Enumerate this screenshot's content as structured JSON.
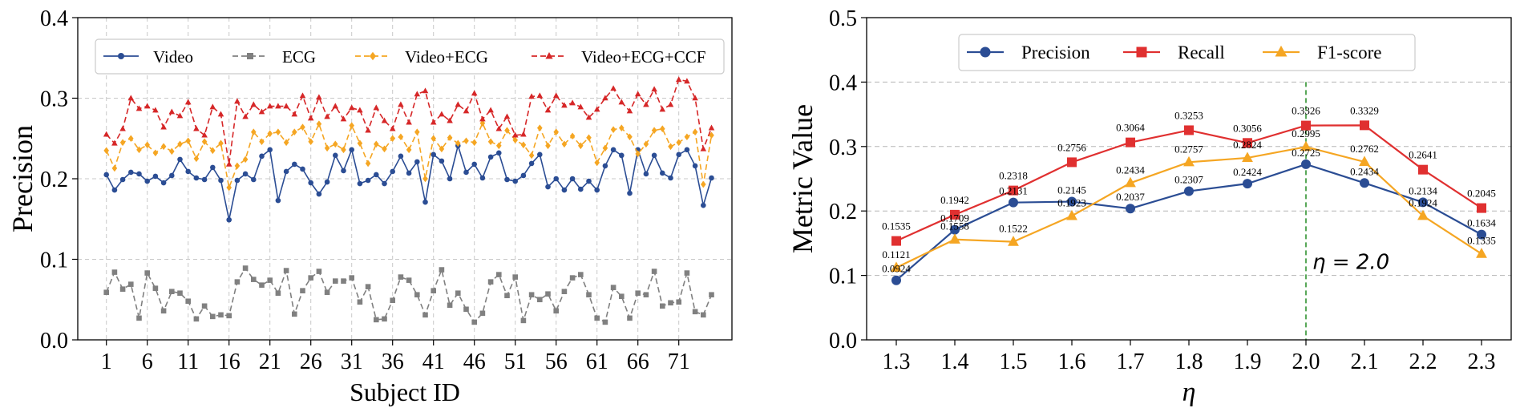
{
  "chart_data": [
    {
      "type": "line",
      "title": "",
      "xlabel": "Subject ID",
      "ylabel": "Precision",
      "xlim": [
        -2.5,
        77.5
      ],
      "ylim": [
        0.0,
        0.4
      ],
      "xticks": [
        1,
        6,
        11,
        16,
        21,
        26,
        31,
        36,
        41,
        46,
        51,
        56,
        61,
        66,
        71
      ],
      "xtick_labels": [
        "1",
        "6",
        "11",
        "16",
        "21",
        "26",
        "31",
        "36",
        "41",
        "46",
        "51",
        "56",
        "61",
        "66",
        "71"
      ],
      "yticks": [
        0.0,
        0.1,
        0.2,
        0.3,
        0.4
      ],
      "ytick_labels": [
        "0.0",
        "0.1",
        "0.2",
        "0.3",
        "0.4"
      ],
      "grid": true,
      "legend": "top",
      "x": [
        1,
        2,
        3,
        4,
        5,
        6,
        7,
        8,
        9,
        10,
        11,
        12,
        13,
        14,
        15,
        16,
        17,
        18,
        19,
        20,
        21,
        22,
        23,
        24,
        25,
        26,
        27,
        28,
        29,
        30,
        31,
        32,
        33,
        34,
        35,
        36,
        37,
        38,
        39,
        40,
        41,
        42,
        43,
        44,
        45,
        46,
        47,
        48,
        49,
        50,
        51,
        52,
        53,
        54,
        55,
        56,
        57,
        58,
        59,
        60,
        61,
        62,
        63,
        64,
        65,
        66,
        67,
        68,
        69,
        70,
        71,
        72,
        73,
        74,
        75
      ],
      "series": [
        {
          "name": "Video",
          "color": "#2b4d94",
          "dash": "solid",
          "marker": "circle",
          "values": [
            0.205,
            0.186,
            0.199,
            0.208,
            0.206,
            0.197,
            0.203,
            0.195,
            0.204,
            0.224,
            0.209,
            0.201,
            0.199,
            0.214,
            0.198,
            0.149,
            0.198,
            0.206,
            0.199,
            0.228,
            0.236,
            0.173,
            0.209,
            0.218,
            0.212,
            0.195,
            0.181,
            0.196,
            0.229,
            0.21,
            0.236,
            0.194,
            0.198,
            0.205,
            0.194,
            0.209,
            0.228,
            0.207,
            0.221,
            0.171,
            0.23,
            0.222,
            0.2,
            0.241,
            0.208,
            0.218,
            0.201,
            0.227,
            0.232,
            0.199,
            0.197,
            0.204,
            0.219,
            0.23,
            0.19,
            0.2,
            0.186,
            0.2,
            0.187,
            0.197,
            0.186,
            0.216,
            0.236,
            0.229,
            0.182,
            0.236,
            0.206,
            0.229,
            0.207,
            0.201,
            0.23,
            0.236,
            0.216,
            0.167,
            0.201
          ]
        },
        {
          "name": "ECG",
          "color": "#808080",
          "dash": "dashed",
          "marker": "square",
          "values": [
            0.059,
            0.084,
            0.063,
            0.069,
            0.027,
            0.083,
            0.064,
            0.036,
            0.06,
            0.058,
            0.048,
            0.026,
            0.042,
            0.029,
            0.031,
            0.03,
            0.072,
            0.089,
            0.075,
            0.068,
            0.074,
            0.058,
            0.086,
            0.032,
            0.061,
            0.077,
            0.085,
            0.059,
            0.073,
            0.073,
            0.077,
            0.047,
            0.066,
            0.025,
            0.026,
            0.049,
            0.078,
            0.074,
            0.056,
            0.031,
            0.061,
            0.087,
            0.043,
            0.058,
            0.038,
            0.022,
            0.033,
            0.072,
            0.081,
            0.055,
            0.078,
            0.024,
            0.056,
            0.05,
            0.057,
            0.036,
            0.06,
            0.077,
            0.081,
            0.056,
            0.027,
            0.022,
            0.065,
            0.054,
            0.027,
            0.058,
            0.056,
            0.085,
            0.042,
            0.046,
            0.047,
            0.083,
            0.035,
            0.031,
            0.056
          ]
        },
        {
          "name": "Video+ECG",
          "color": "#f5a623",
          "dash": "dashed",
          "marker": "diamond",
          "values": [
            0.235,
            0.213,
            0.245,
            0.25,
            0.236,
            0.242,
            0.232,
            0.24,
            0.234,
            0.243,
            0.247,
            0.225,
            0.246,
            0.235,
            0.244,
            0.189,
            0.216,
            0.224,
            0.258,
            0.246,
            0.256,
            0.258,
            0.245,
            0.258,
            0.264,
            0.246,
            0.268,
            0.238,
            0.243,
            0.236,
            0.266,
            0.244,
            0.219,
            0.243,
            0.237,
            0.25,
            0.252,
            0.236,
            0.258,
            0.2,
            0.25,
            0.237,
            0.251,
            0.244,
            0.247,
            0.245,
            0.269,
            0.246,
            0.241,
            0.26,
            0.248,
            0.242,
            0.229,
            0.263,
            0.241,
            0.258,
            0.243,
            0.253,
            0.241,
            0.251,
            0.22,
            0.238,
            0.261,
            0.263,
            0.252,
            0.231,
            0.243,
            0.26,
            0.262,
            0.24,
            0.245,
            0.252,
            0.258,
            0.193,
            0.254
          ]
        },
        {
          "name": "Video+ECG+CCF",
          "color": "#d62728",
          "dash": "dashed",
          "marker": "triangle",
          "values": [
            0.255,
            0.244,
            0.262,
            0.3,
            0.287,
            0.29,
            0.285,
            0.264,
            0.283,
            0.278,
            0.295,
            0.262,
            0.254,
            0.289,
            0.28,
            0.218,
            0.296,
            0.277,
            0.292,
            0.283,
            0.29,
            0.29,
            0.29,
            0.28,
            0.303,
            0.275,
            0.301,
            0.277,
            0.29,
            0.274,
            0.288,
            0.285,
            0.26,
            0.288,
            0.272,
            0.262,
            0.292,
            0.27,
            0.305,
            0.309,
            0.27,
            0.28,
            0.272,
            0.292,
            0.284,
            0.306,
            0.274,
            0.285,
            0.262,
            0.277,
            0.254,
            0.255,
            0.302,
            0.303,
            0.285,
            0.303,
            0.291,
            0.294,
            0.289,
            0.276,
            0.286,
            0.3,
            0.312,
            0.295,
            0.284,
            0.305,
            0.292,
            0.311,
            0.286,
            0.292,
            0.323,
            0.321,
            0.3,
            0.237,
            0.263
          ]
        }
      ]
    },
    {
      "type": "line",
      "title": "",
      "xlabel": "η",
      "ylabel": "Metric Value",
      "categories": [
        "1.3",
        "1.4",
        "1.5",
        "1.6",
        "1.7",
        "1.8",
        "1.9",
        "2.0",
        "2.1",
        "2.2",
        "2.3"
      ],
      "ylim": [
        0.0,
        0.5
      ],
      "yticks": [
        0.0,
        0.1,
        0.2,
        0.3,
        0.4,
        0.5
      ],
      "ytick_labels": [
        "0.0",
        "0.1",
        "0.2",
        "0.3",
        "0.4",
        "0.5"
      ],
      "grid": true,
      "grid_axis": "y",
      "legend": "top",
      "annotation": {
        "text": "η = 2.0",
        "x": "2.0",
        "color": "#228b22"
      },
      "series": [
        {
          "name": "Precision",
          "color": "#2b4d94",
          "marker": "circle",
          "values": [
            0.0924,
            0.1709,
            0.2131,
            0.2145,
            0.2037,
            0.2307,
            0.2424,
            0.2725,
            0.2434,
            0.2134,
            0.1634
          ],
          "labels": [
            "0.0924",
            "0.1709",
            "0.2131",
            "0.2145",
            "0.2037",
            "0.2307",
            "0.2424",
            "0.2725",
            "0.2434",
            "0.2134",
            "0.1634"
          ]
        },
        {
          "name": "Recall",
          "color": "#e03030",
          "marker": "square",
          "values": [
            0.1535,
            0.1942,
            0.2318,
            0.2756,
            0.3064,
            0.3253,
            0.3056,
            0.3326,
            0.3329,
            0.2641,
            0.2045
          ],
          "labels": [
            "0.1535",
            "0.1942",
            "0.2318",
            "0.2756",
            "0.3064",
            "0.3253",
            "0.3056",
            "0.3326",
            "0.3329",
            "0.2641",
            "0.2045"
          ]
        },
        {
          "name": "F1-score",
          "color": "#f5a623",
          "marker": "triangle",
          "values": [
            0.1121,
            0.1558,
            0.1522,
            0.1923,
            0.2434,
            0.2757,
            0.2824,
            0.2995,
            0.2762,
            0.1924,
            0.1335
          ],
          "labels": [
            "0.1121",
            "0.1558",
            "0.1522",
            "0.1923",
            "0.2434",
            "0.2757",
            "0.2824",
            "0.2995",
            "0.2762",
            "0.1924",
            "0.1335"
          ]
        }
      ]
    }
  ]
}
